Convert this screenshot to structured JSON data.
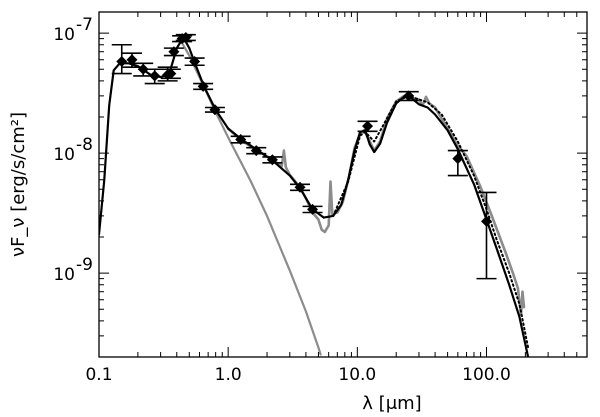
{
  "chart_data": {
    "type": "scatter",
    "title": "",
    "xlabel": "λ [μm]",
    "ylabel": "νF_ν [erg/s/cm²]",
    "xscale": "log",
    "yscale": "log",
    "xlim": [
      0.1,
      600
    ],
    "ylim": [
      2e-10,
      1.5e-07
    ],
    "grid": false,
    "legend": "none",
    "x_ticks": [
      {
        "value": 0.1,
        "label": "0.1"
      },
      {
        "value": 1,
        "label": "1.0"
      },
      {
        "value": 10,
        "label": "10.0"
      },
      {
        "value": 100,
        "label": "100.0"
      }
    ],
    "y_ticks": [
      {
        "value": 1e-09,
        "label_base": "10",
        "label_exp": "-9"
      },
      {
        "value": 1e-08,
        "label_base": "10",
        "label_exp": "-8"
      },
      {
        "value": 1e-07,
        "label_base": "10",
        "label_exp": "-7"
      }
    ],
    "colors": {
      "model": "#000000",
      "spectrum": "#8c8c8c",
      "stellar": "#8c8c8c",
      "points": "#000000",
      "errorbars": "#000000"
    },
    "series": [
      {
        "kind": "points",
        "style": "diamond-with-errorbars",
        "points": [
          {
            "x": 0.15,
            "y": 5.8e-08,
            "lo": 4.6e-08,
            "hi": 8e-08
          },
          {
            "x": 0.18,
            "y": 6e-08,
            "lo": 5.2e-08,
            "hi": 6.8e-08
          },
          {
            "x": 0.22,
            "y": 5e-08,
            "lo": 4.4e-08,
            "hi": 5.6e-08
          },
          {
            "x": 0.27,
            "y": 4.4e-08,
            "lo": 3.8e-08,
            "hi": 5e-08
          },
          {
            "x": 0.34,
            "y": 4.5e-08,
            "lo": 4e-08,
            "hi": 5.2e-08
          },
          {
            "x": 0.36,
            "y": 4.6e-08,
            "lo": 4.2e-08,
            "hi": 5e-08
          },
          {
            "x": 0.38,
            "y": 7e-08,
            "lo": 6.5e-08,
            "hi": 7.5e-08
          },
          {
            "x": 0.44,
            "y": 9e-08,
            "lo": 8.5e-08,
            "hi": 9.5e-08
          },
          {
            "x": 0.47,
            "y": 9.2e-08,
            "lo": 8.7e-08,
            "hi": 9.7e-08
          },
          {
            "x": 0.55,
            "y": 5.8e-08,
            "lo": 5.4e-08,
            "hi": 6.2e-08
          },
          {
            "x": 0.64,
            "y": 3.6e-08,
            "lo": 3.4e-08,
            "hi": 3.8e-08
          },
          {
            "x": 0.79,
            "y": 2.3e-08,
            "lo": 2.2e-08,
            "hi": 2.4e-08
          },
          {
            "x": 1.25,
            "y": 1.3e-08,
            "lo": 1.22e-08,
            "hi": 1.38e-08
          },
          {
            "x": 1.65,
            "y": 1.05e-08,
            "lo": 9.9e-09,
            "hi": 1.11e-08
          },
          {
            "x": 2.2,
            "y": 8.8e-09,
            "lo": 8.3e-09,
            "hi": 9.3e-09
          },
          {
            "x": 3.6,
            "y": 5.2e-09,
            "lo": 4.9e-09,
            "hi": 5.5e-09
          },
          {
            "x": 4.5,
            "y": 3.4e-09,
            "lo": 3.2e-09,
            "hi": 3.6e-09
          },
          {
            "x": 12,
            "y": 1.68e-08,
            "lo": 1.52e-08,
            "hi": 1.84e-08
          },
          {
            "x": 25,
            "y": 3e-08,
            "lo": 2.75e-08,
            "hi": 3.25e-08
          },
          {
            "x": 60,
            "y": 9e-09,
            "lo": 6.5e-09,
            "hi": 1.05e-08
          },
          {
            "x": 100,
            "y": 2.7e-09,
            "lo": 9e-10,
            "hi": 4.7e-09
          }
        ]
      },
      {
        "kind": "line",
        "style": "solid-black",
        "points": [
          [
            0.1,
            2.1e-09
          ],
          [
            0.11,
            6e-09
          ],
          [
            0.12,
            2.5e-08
          ],
          [
            0.13,
            4.9e-08
          ],
          [
            0.145,
            5.6e-08
          ],
          [
            0.17,
            5.6e-08
          ],
          [
            0.2,
            5.3e-08
          ],
          [
            0.25,
            4.5e-08
          ],
          [
            0.3,
            4.3e-08
          ],
          [
            0.35,
            4.6e-08
          ],
          [
            0.4,
            7.5e-08
          ],
          [
            0.45,
            9.2e-08
          ],
          [
            0.5,
            7.5e-08
          ],
          [
            0.55,
            5.7e-08
          ],
          [
            0.65,
            3.6e-08
          ],
          [
            0.8,
            2.3e-08
          ],
          [
            1.0,
            1.6e-08
          ],
          [
            1.3,
            1.28e-08
          ],
          [
            1.7,
            1.05e-08
          ],
          [
            2.2,
            8.7e-09
          ],
          [
            3.0,
            6.5e-09
          ],
          [
            3.6,
            5.1e-09
          ],
          [
            4.5,
            3.4e-09
          ],
          [
            5.5,
            2.9e-09
          ],
          [
            6.5,
            3e-09
          ],
          [
            7.5,
            3.7e-09
          ],
          [
            8.5,
            6e-09
          ],
          [
            9.5,
            1.05e-08
          ],
          [
            10.5,
            1.5e-08
          ],
          [
            11.5,
            1.55e-08
          ],
          [
            12.5,
            1.18e-08
          ],
          [
            13.5,
            1.02e-08
          ],
          [
            15,
            1.2e-08
          ],
          [
            17,
            1.8e-08
          ],
          [
            20,
            2.6e-08
          ],
          [
            23,
            2.95e-08
          ],
          [
            26,
            2.9e-08
          ],
          [
            30,
            2.55e-08
          ],
          [
            35,
            2.4e-08
          ],
          [
            40,
            2.1e-08
          ],
          [
            50,
            1.55e-08
          ],
          [
            60,
            1.08e-08
          ],
          [
            70,
            7.5e-09
          ],
          [
            80,
            5.5e-09
          ],
          [
            100,
            2.8e-09
          ],
          [
            120,
            1.6e-09
          ],
          [
            150,
            8e-10
          ],
          [
            180,
            4.3e-10
          ],
          [
            210,
            2e-10
          ]
        ]
      },
      {
        "kind": "line",
        "style": "dotted-black",
        "points": [
          [
            6.5,
            3e-09
          ],
          [
            8.5,
            5.8e-09
          ],
          [
            10.5,
            1.4e-08
          ],
          [
            11.5,
            1.5e-08
          ],
          [
            13.5,
            1.25e-08
          ],
          [
            17,
            1.95e-08
          ],
          [
            20,
            2.7e-08
          ],
          [
            25,
            3e-08
          ],
          [
            30,
            2.8e-08
          ],
          [
            35,
            2.65e-08
          ],
          [
            45,
            2.1e-08
          ],
          [
            60,
            1.25e-08
          ],
          [
            80,
            6.5e-09
          ],
          [
            100,
            3.4e-09
          ],
          [
            120,
            1.9e-09
          ],
          [
            150,
            1e-09
          ],
          [
            180,
            5.5e-10
          ],
          [
            210,
            2.4e-10
          ]
        ]
      },
      {
        "kind": "line",
        "style": "gray-spectrum",
        "points": [
          [
            1.0,
            1.6e-08
          ],
          [
            1.3,
            1.25e-08
          ],
          [
            1.7,
            1.05e-08
          ],
          [
            2.2,
            8.8e-09
          ],
          [
            2.6,
            7.8e-09
          ],
          [
            2.7,
            1.05e-08
          ],
          [
            2.8,
            7.6e-09
          ],
          [
            3.0,
            6.6e-09
          ],
          [
            3.6,
            5.2e-09
          ],
          [
            4.0,
            4.2e-09
          ],
          [
            4.5,
            3.2e-09
          ],
          [
            5.0,
            2.8e-09
          ],
          [
            5.3,
            2.3e-09
          ],
          [
            5.6,
            2.2e-09
          ],
          [
            6.0,
            2.5e-09
          ],
          [
            6.2,
            5.8e-09
          ],
          [
            6.4,
            3.1e-09
          ],
          [
            7.0,
            3.2e-09
          ],
          [
            7.7,
            3.9e-09
          ],
          [
            8.6,
            6.3e-09
          ],
          [
            9.5,
            1.1e-08
          ],
          [
            10.5,
            1.45e-08
          ],
          [
            11.3,
            1.55e-08
          ],
          [
            12.5,
            1.25e-08
          ],
          [
            13.5,
            1.05e-08
          ],
          [
            15,
            1.25e-08
          ],
          [
            17,
            1.95e-08
          ],
          [
            20,
            2.7e-08
          ],
          [
            23,
            3e-08
          ],
          [
            26,
            2.9e-08
          ],
          [
            30,
            2.8e-08
          ],
          [
            32,
            2.5e-08
          ],
          [
            34,
            2.95e-08
          ],
          [
            36,
            2.6e-08
          ],
          [
            40,
            2.4e-08
          ],
          [
            50,
            1.6e-08
          ],
          [
            60,
            1.15e-08
          ],
          [
            70,
            9.5e-09
          ],
          [
            90,
            5.2e-09
          ],
          [
            110,
            3e-09
          ],
          [
            140,
            1.5e-09
          ],
          [
            160,
            1e-09
          ],
          [
            175,
            7.5e-10
          ],
          [
            185,
            4.5e-10
          ],
          [
            190,
            7e-10
          ],
          [
            195,
            5.2e-10
          ]
        ]
      },
      {
        "kind": "line",
        "style": "gray-stellar",
        "points": [
          [
            0.42,
            9e-08
          ],
          [
            0.5,
            6.5e-08
          ],
          [
            0.6,
            4.3e-08
          ],
          [
            0.8,
            2.2e-08
          ],
          [
            1.0,
            1.35e-08
          ],
          [
            1.5,
            5.8e-09
          ],
          [
            2.0,
            3e-09
          ],
          [
            3.0,
            1.05e-09
          ],
          [
            4.0,
            4.8e-10
          ],
          [
            5.0,
            2.4e-10
          ],
          [
            5.2,
            2.1e-10
          ]
        ]
      }
    ]
  }
}
